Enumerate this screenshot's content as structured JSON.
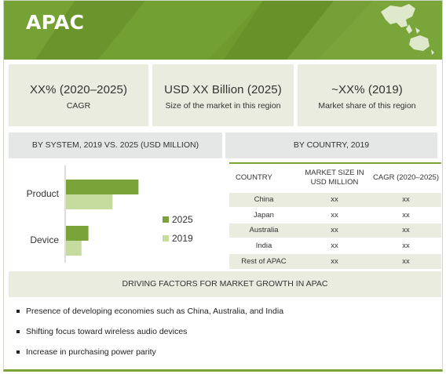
{
  "header": {
    "title": "APAC"
  },
  "kpis": [
    {
      "value": "XX% (2020–2025)",
      "label": "CAGR"
    },
    {
      "value": "USD XX Billion (2025)",
      "label": "Size of the market in this region"
    },
    {
      "value": "~XX% (2019)",
      "label": "Market share of this region"
    }
  ],
  "by_system_heading": "BY SYSTEM, 2019 VS. 2025 (USD MILLION)",
  "by_country_heading": "BY COUNTRY, 2019",
  "chart_data": {
    "type": "bar",
    "orientation": "horizontal",
    "categories": [
      "Product",
      "Device"
    ],
    "series": [
      {
        "name": "2025",
        "values": [
          84,
          26
        ],
        "color": "#7aa33a"
      },
      {
        "name": "2019",
        "values": [
          54,
          18
        ],
        "color": "#c5dc9e"
      }
    ],
    "xlim": [
      0,
      100
    ],
    "grid": false,
    "axis_ticks": false,
    "legend_position": "right"
  },
  "country_table": {
    "headers": [
      "COUNTRY",
      "MARKET SIZE IN USD MILLION",
      "CAGR (2020–2025)"
    ],
    "rows": [
      [
        "China",
        "xx",
        "xx"
      ],
      [
        "Japan",
        "xx",
        "xx"
      ],
      [
        "Australia",
        "xx",
        "xx"
      ],
      [
        "India",
        "xx",
        "xx"
      ],
      [
        "Rest of APAC",
        "xx",
        "xx"
      ]
    ]
  },
  "drivers": {
    "heading": "DRIVING FACTORS FOR MARKET GROWTH IN APAC",
    "items": [
      "Presence of developing economies such as China, Australia, and India",
      "Shifting focus toward wireless audio devices",
      "Increase in purchasing power parity"
    ]
  },
  "colors": {
    "accent": "#7aa33a",
    "header": "#6e9a2e",
    "panel": "#e9ecdf",
    "light_series": "#c5dc9e"
  },
  "icons": {
    "header_decoration": "asia-pacific-map-icon"
  }
}
